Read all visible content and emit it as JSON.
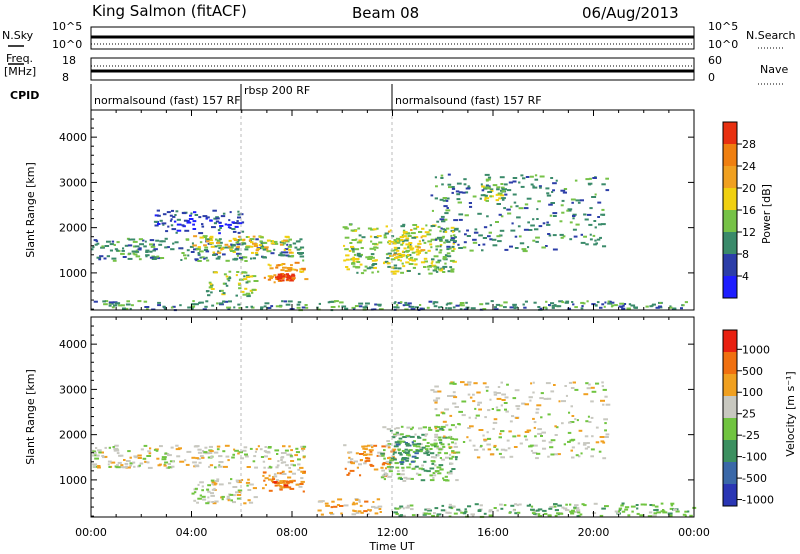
{
  "header": {
    "station": "King Salmon (fitACF)",
    "beam": "Beam 08",
    "date": "06/Aug/2013"
  },
  "top_panels": {
    "nsky_label": "N.Sky",
    "nsky_ticks": [
      "10^5",
      "10^0"
    ],
    "nsearch_label": "N.Search",
    "nsearch_ticks": [
      "10^5",
      "10^0"
    ],
    "freq_label_1": "Freq.",
    "freq_label_2": "[MHz]",
    "freq_ticks": [
      "18",
      "8"
    ],
    "nave_label": "Nave",
    "nave_ticks": [
      "60",
      "0"
    ],
    "cpid_label": "CPID",
    "cpid_segments": [
      {
        "label": "normalsound (fast) 157 RF",
        "start_h": 0,
        "end_h": 6
      },
      {
        "label": "rbsp 200 RF",
        "start_h": 6,
        "end_h": 12
      },
      {
        "label": "normalsound (fast) 157 RF",
        "start_h": 12,
        "end_h": 24
      }
    ]
  },
  "axes": {
    "ylabel": "Slant Range [km]",
    "xlabel": "Time UT",
    "yticks": [
      "1000",
      "2000",
      "3000",
      "4000"
    ],
    "xticks": [
      "00:00",
      "04:00",
      "08:00",
      "12:00",
      "16:00",
      "20:00",
      "00:00"
    ]
  },
  "colorbars": {
    "power": {
      "label": "Power [dB]",
      "ticks": [
        "4",
        "8",
        "12",
        "16",
        "20",
        "24",
        "28"
      ],
      "colors": [
        "#1e1eff",
        "#2c3ea8",
        "#3a8a6a",
        "#76c247",
        "#f0d010",
        "#f0a020",
        "#ef7f10",
        "#e83010"
      ]
    },
    "velocity": {
      "label": "Velocity [m s⁻¹]",
      "ticks": [
        "1000",
        "500",
        "100",
        "25",
        "-25",
        "-100",
        "-500",
        "-1000"
      ],
      "colors": [
        "#2a36b4",
        "#3a68a8",
        "#3c9060",
        "#70c440",
        "#c8c8c0",
        "#f0a020",
        "#f07010",
        "#e82010"
      ]
    }
  },
  "chart_data": [
    {
      "type": "heatmap",
      "title": "Power",
      "xlabel": "Time UT",
      "ylabel": "Slant Range [km]",
      "xlim_hours": [
        0,
        24
      ],
      "ylim_km": [
        180,
        4600
      ],
      "colorbar_label": "Power [dB]",
      "regions": [
        {
          "t0": 0.0,
          "t1": 8.5,
          "r0": 1280,
          "r1": 1780,
          "level": 2
        },
        {
          "t0": 4.0,
          "t1": 8.0,
          "r0": 1450,
          "r1": 1850,
          "level": 4
        },
        {
          "t0": 4.5,
          "t1": 6.5,
          "r0": 500,
          "r1": 1050,
          "level": 3
        },
        {
          "t0": 6.8,
          "t1": 8.5,
          "r0": 800,
          "r1": 1250,
          "level": 5
        },
        {
          "t0": 7.3,
          "t1": 8.0,
          "r0": 850,
          "r1": 1000,
          "level": 7
        },
        {
          "t0": 10.0,
          "t1": 14.5,
          "r0": 1000,
          "r1": 2100,
          "level": 3
        },
        {
          "t0": 11.8,
          "t1": 13.2,
          "r0": 1350,
          "r1": 2000,
          "level": 4
        },
        {
          "t0": 13.5,
          "t1": 20.5,
          "r0": 1500,
          "r1": 3200,
          "level": 2
        },
        {
          "t0": 15.5,
          "t1": 16.5,
          "r0": 2600,
          "r1": 3000,
          "level": 3
        },
        {
          "t0": 2.5,
          "t1": 6.0,
          "r0": 1900,
          "r1": 2400,
          "level": 1
        },
        {
          "t0": 0.0,
          "t1": 24.0,
          "r0": 200,
          "r1": 400,
          "level": 2
        }
      ]
    },
    {
      "type": "heatmap",
      "title": "Velocity",
      "xlabel": "Time UT",
      "ylabel": "Slant Range [km]",
      "xlim_hours": [
        0,
        24
      ],
      "ylim_km": [
        180,
        4600
      ],
      "colorbar_label": "Velocity [m s⁻¹]",
      "regions": [
        {
          "t0": 0.0,
          "t1": 8.5,
          "r0": 1280,
          "r1": 1780,
          "level": 4
        },
        {
          "t0": 4.0,
          "t1": 6.5,
          "r0": 500,
          "r1": 1050,
          "level": 4
        },
        {
          "t0": 6.8,
          "t1": 8.5,
          "r0": 750,
          "r1": 1250,
          "level": 5
        },
        {
          "t0": 7.2,
          "t1": 8.0,
          "r0": 850,
          "r1": 1000,
          "level": 6
        },
        {
          "t0": 10.0,
          "t1": 12.0,
          "r0": 1100,
          "r1": 1800,
          "level": 5
        },
        {
          "t0": 11.5,
          "t1": 14.5,
          "r0": 1000,
          "r1": 2200,
          "level": 3
        },
        {
          "t0": 12.0,
          "t1": 13.0,
          "r0": 1400,
          "r1": 2100,
          "level": 2
        },
        {
          "t0": 13.5,
          "t1": 20.5,
          "r0": 1500,
          "r1": 3200,
          "level": 4
        },
        {
          "t0": 9.0,
          "t1": 11.5,
          "r0": 250,
          "r1": 600,
          "level": 5
        },
        {
          "t0": 12.0,
          "t1": 24.0,
          "r0": 200,
          "r1": 500,
          "level": 3
        }
      ]
    }
  ]
}
